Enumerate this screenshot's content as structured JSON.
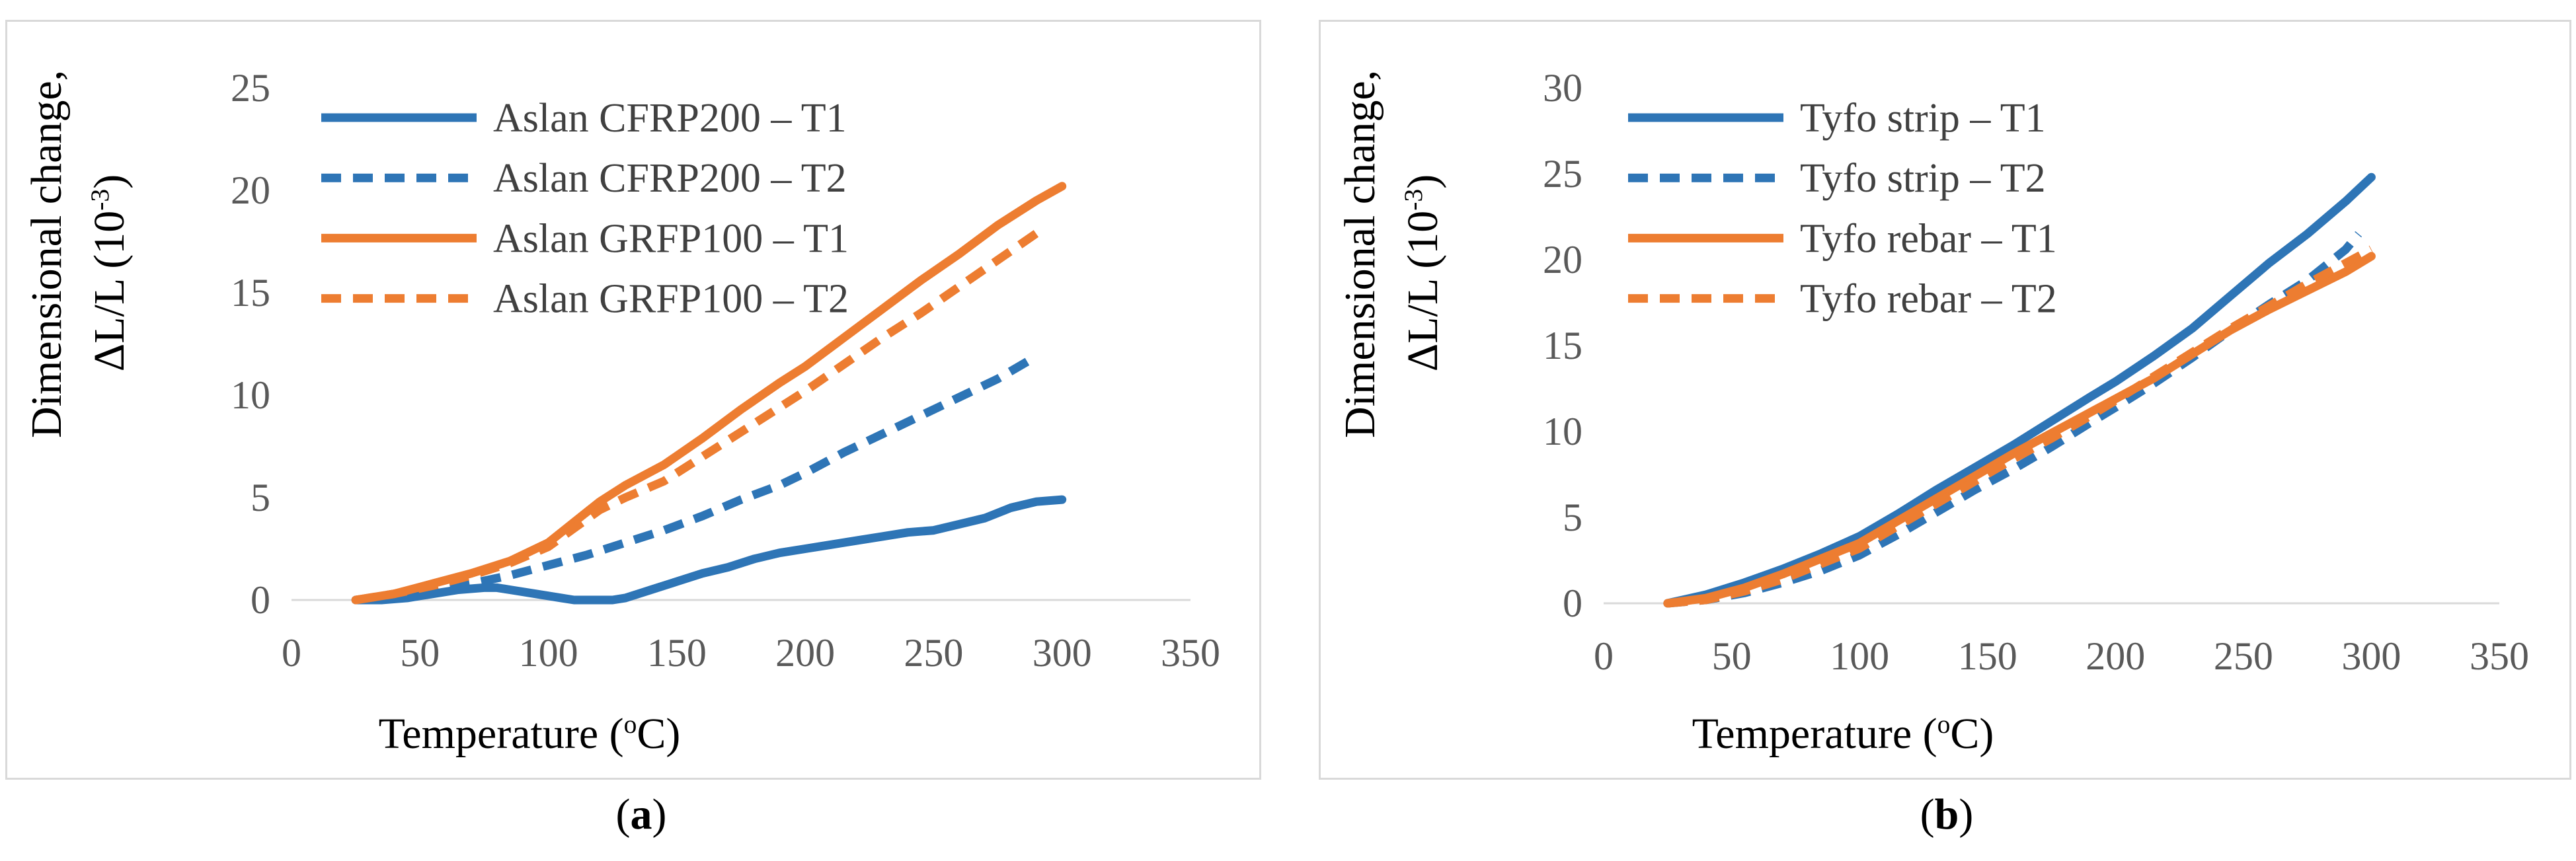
{
  "chart_data": [
    {
      "type": "line",
      "panel": "a",
      "caption_letter": "a",
      "ylabel_line1": "Dimensional change,",
      "ylabel_line2": "ΔL/L (10",
      "ylabel_sup": "-3",
      "ylabel_end": ")",
      "xlabel_main": "Temperature (",
      "xlabel_sup": "o",
      "xlabel_end": "C)",
      "xlim": [
        0,
        350
      ],
      "ylim": [
        0,
        25
      ],
      "xticks": [
        "0",
        "50",
        "100",
        "150",
        "200",
        "250",
        "300",
        "350"
      ],
      "yticks": [
        "0",
        "5",
        "10",
        "15",
        "20",
        "25"
      ],
      "legend_position": "top-left",
      "series": [
        {
          "name": "Aslan CFRP200 – T1",
          "color": "#2e75b6",
          "dash": false,
          "x": [
            25,
            35,
            45,
            55,
            65,
            75,
            80,
            85,
            95,
            105,
            110,
            120,
            125,
            130,
            140,
            150,
            160,
            170,
            180,
            190,
            200,
            210,
            220,
            230,
            240,
            250,
            260,
            270,
            280,
            290,
            300
          ],
          "y": [
            0,
            0,
            0.1,
            0.3,
            0.5,
            0.6,
            0.6,
            0.5,
            0.3,
            0.1,
            0,
            0,
            0,
            0.1,
            0.5,
            0.9,
            1.3,
            1.6,
            2.0,
            2.3,
            2.5,
            2.7,
            2.9,
            3.1,
            3.3,
            3.4,
            3.7,
            4.0,
            4.5,
            4.8,
            4.9
          ]
        },
        {
          "name": "Aslan CFRP200 – T2",
          "color": "#2e75b6",
          "dash": true,
          "x": [
            25,
            40,
            55,
            70,
            85,
            100,
            115,
            130,
            145,
            160,
            175,
            190,
            200,
            215,
            230,
            245,
            260,
            275,
            290
          ],
          "y": [
            0,
            0.2,
            0.5,
            0.8,
            1.2,
            1.7,
            2.2,
            2.8,
            3.4,
            4.1,
            4.9,
            5.6,
            6.2,
            7.2,
            8.1,
            9.0,
            9.9,
            10.8,
            11.9
          ]
        },
        {
          "name": "Aslan GRFP100 – T1",
          "color": "#ed7d31",
          "dash": false,
          "x": [
            25,
            40,
            55,
            70,
            85,
            100,
            110,
            120,
            130,
            145,
            160,
            175,
            190,
            200,
            215,
            230,
            245,
            260,
            275,
            290,
            300
          ],
          "y": [
            0,
            0.3,
            0.8,
            1.3,
            1.9,
            2.8,
            3.8,
            4.8,
            5.6,
            6.6,
            7.9,
            9.3,
            10.6,
            11.4,
            12.8,
            14.2,
            15.6,
            16.9,
            18.3,
            19.5,
            20.2
          ]
        },
        {
          "name": "Aslan GRFP100 – T2",
          "color": "#ed7d31",
          "dash": true,
          "x": [
            25,
            40,
            55,
            70,
            85,
            100,
            110,
            120,
            130,
            145,
            160,
            175,
            190,
            200,
            215,
            230,
            245,
            260,
            275,
            290
          ],
          "y": [
            0,
            0.3,
            0.7,
            1.2,
            1.8,
            2.6,
            3.5,
            4.4,
            5.0,
            5.8,
            7.0,
            8.2,
            9.4,
            10.2,
            11.5,
            12.8,
            14.0,
            15.3,
            16.6,
            17.9
          ]
        }
      ]
    },
    {
      "type": "line",
      "panel": "b",
      "caption_letter": "b",
      "ylabel_line1": "Dimensional change,",
      "ylabel_line2": "ΔL/L (10",
      "ylabel_sup": "-3",
      "ylabel_end": ")",
      "xlabel_main": "Temperature (",
      "xlabel_sup": "o",
      "xlabel_end": "C)",
      "xlim": [
        0,
        350
      ],
      "ylim": [
        0,
        30
      ],
      "xticks": [
        "0",
        "50",
        "100",
        "150",
        "200",
        "250",
        "300",
        "350"
      ],
      "yticks": [
        "0",
        "5",
        "10",
        "15",
        "20",
        "25",
        "30"
      ],
      "legend_position": "top-left",
      "series": [
        {
          "name": "Tyfo strip – T1",
          "color": "#2e75b6",
          "dash": false,
          "x": [
            25,
            40,
            55,
            70,
            85,
            100,
            115,
            130,
            145,
            160,
            175,
            190,
            200,
            215,
            230,
            245,
            260,
            275,
            290,
            300
          ],
          "y": [
            0,
            0.5,
            1.2,
            2.0,
            2.9,
            3.9,
            5.2,
            6.6,
            7.9,
            9.2,
            10.6,
            12.0,
            12.9,
            14.4,
            16.0,
            17.9,
            19.8,
            21.5,
            23.4,
            24.8
          ]
        },
        {
          "name": "Tyfo strip – T2",
          "color": "#2e75b6",
          "dash": true,
          "x": [
            25,
            40,
            55,
            70,
            85,
            100,
            115,
            130,
            145,
            160,
            175,
            190,
            200,
            215,
            230,
            245,
            260,
            275,
            290,
            295
          ],
          "y": [
            0,
            0.2,
            0.6,
            1.2,
            1.9,
            2.8,
            4.0,
            5.3,
            6.6,
            7.8,
            9.1,
            10.5,
            11.4,
            12.8,
            14.3,
            15.9,
            17.4,
            18.8,
            20.6,
            21.5
          ]
        },
        {
          "name": "Tyfo rebar – T1",
          "color": "#ed7d31",
          "dash": false,
          "x": [
            25,
            40,
            55,
            70,
            85,
            100,
            115,
            130,
            145,
            160,
            175,
            190,
            200,
            215,
            230,
            245,
            260,
            275,
            290,
            300
          ],
          "y": [
            0,
            0.3,
            0.9,
            1.7,
            2.6,
            3.5,
            4.8,
            6.1,
            7.4,
            8.7,
            9.9,
            11.1,
            11.9,
            13.1,
            14.5,
            15.9,
            17.1,
            18.2,
            19.3,
            20.2
          ]
        },
        {
          "name": "Tyfo rebar – T2",
          "color": "#ed7d31",
          "dash": true,
          "x": [
            25,
            40,
            55,
            70,
            85,
            100,
            115,
            130,
            145,
            160,
            175,
            190,
            200,
            215,
            230,
            245,
            260,
            275,
            290,
            300
          ],
          "y": [
            0,
            0.2,
            0.7,
            1.4,
            2.3,
            3.2,
            4.5,
            5.8,
            7.1,
            8.4,
            9.6,
            10.9,
            11.8,
            13.2,
            14.6,
            16.0,
            17.3,
            18.6,
            19.8,
            20.6
          ]
        }
      ]
    }
  ]
}
